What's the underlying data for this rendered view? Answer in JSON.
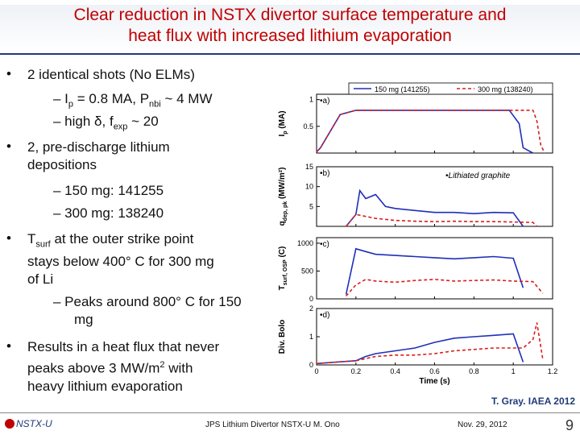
{
  "title": {
    "line1": "Clear reduction in NSTX divertor surface temperature and",
    "line2": "heat flux with increased lithium evaporation"
  },
  "bullets": {
    "b1": "2 identical shots (No ELMs)",
    "b1_s1_pre": "– I",
    "b1_s1_sub": "p",
    "b1_s1_mid": " = 0.8 MA, P",
    "b1_s1_sub2": "nbi",
    "b1_s1_post": " ~ 4 MW",
    "b1_s2_pre": "– high δ, f",
    "b1_s2_sub": "exp",
    "b1_s2_post": " ~ 20",
    "b2_l1": "2, pre-discharge lithium",
    "b2_l2": "depositions",
    "b2_s1": "– 150 mg: 141255",
    "b2_s2": "– 300 mg: 138240",
    "b3_pre": "T",
    "b3_sub": "surf",
    "b3_post": " at the outer strike point",
    "b3_l2": "stays below 400° C for 300 mg",
    "b3_l3": "of Li",
    "b3_s1_l1": "– Peaks around 800° C for 150",
    "b3_s1_l2": "mg",
    "b4_l1": "Results in a heat flux that never",
    "b4_l2_pre": "peaks above 3 MW/m",
    "b4_l2_sup": "2",
    "b4_l2_post": " with",
    "b4_l3": "heavy lithium evaporation"
  },
  "citation": "T. Gray. IAEA 2012",
  "footer": {
    "logo": "NSTX-U",
    "center": "JPS Lithium Divertor NSTX-U M. Ono",
    "date": "Nov. 29, 2012",
    "page": "9"
  },
  "colors": {
    "title": "#c00000",
    "series_150": "#1f2fb8",
    "series_300": "#d81e1e",
    "rule": "#1f3b7a"
  },
  "chart_data": [
    {
      "type": "line",
      "panel": "a)",
      "ylabel_main": "I",
      "ylabel_sub": "p",
      "ylabel_unit": "(MA)",
      "yticks": [
        "0.5",
        "1"
      ],
      "ylim": [
        0,
        1.1
      ],
      "xlim": [
        0,
        1.2
      ],
      "legend": [
        "150 mg (141255)",
        "300 mg (138240)"
      ],
      "series": [
        {
          "name": "150 mg (141255)",
          "x": [
            0.0,
            0.02,
            0.12,
            0.2,
            0.5,
            0.8,
            0.98,
            1.03,
            1.05,
            1.1
          ],
          "y": [
            0.02,
            0.1,
            0.72,
            0.8,
            0.8,
            0.8,
            0.8,
            0.55,
            0.1,
            0.0
          ]
        },
        {
          "name": "300 mg (138240)",
          "x": [
            0.0,
            0.02,
            0.12,
            0.2,
            0.5,
            0.8,
            0.98,
            1.05,
            1.1,
            1.12,
            1.14,
            1.16
          ],
          "y": [
            0.02,
            0.1,
            0.72,
            0.8,
            0.8,
            0.8,
            0.8,
            0.8,
            0.8,
            0.6,
            0.15,
            0.0
          ]
        }
      ]
    },
    {
      "type": "line",
      "panel": "b)",
      "annotation": "Lithiated graphite",
      "ylabel_main": "q",
      "ylabel_sub": "dep, pk",
      "ylabel_unit": "(MW/m²)",
      "yticks": [
        "5",
        "10",
        "15"
      ],
      "ylim": [
        0,
        15
      ],
      "xlim": [
        0,
        1.2
      ],
      "series": [
        {
          "name": "150 mg (141255)",
          "x": [
            0.15,
            0.2,
            0.22,
            0.25,
            0.3,
            0.35,
            0.4,
            0.5,
            0.6,
            0.7,
            0.8,
            0.9,
            1.0,
            1.05
          ],
          "y": [
            0,
            3,
            9,
            7,
            8,
            5,
            4.5,
            4,
            3.5,
            3.5,
            3.2,
            3.5,
            3.4,
            0
          ]
        },
        {
          "name": "300 mg (138240)",
          "x": [
            0.15,
            0.2,
            0.25,
            0.3,
            0.4,
            0.5,
            0.6,
            0.7,
            0.8,
            0.9,
            1.0,
            1.1,
            1.12
          ],
          "y": [
            0,
            3,
            2.5,
            2,
            1.5,
            1.3,
            1.2,
            1.3,
            1.2,
            1.2,
            1.1,
            1.0,
            0
          ]
        }
      ]
    },
    {
      "type": "line",
      "panel": "c)",
      "ylabel_main": "T",
      "ylabel_sub": "surf, OSP",
      "ylabel_unit": "(C)",
      "yticks": [
        "0",
        "500",
        "1000"
      ],
      "ylim": [
        0,
        1100
      ],
      "xlim": [
        0,
        1.2
      ],
      "series": [
        {
          "name": "150 mg (141255)",
          "x": [
            0.15,
            0.2,
            0.25,
            0.3,
            0.4,
            0.5,
            0.6,
            0.7,
            0.8,
            0.9,
            1.0,
            1.05
          ],
          "y": [
            80,
            900,
            850,
            800,
            780,
            760,
            740,
            720,
            740,
            760,
            730,
            200
          ]
        },
        {
          "name": "300 mg (138240)",
          "x": [
            0.15,
            0.2,
            0.25,
            0.3,
            0.4,
            0.5,
            0.6,
            0.7,
            0.8,
            0.9,
            1.0,
            1.1,
            1.15
          ],
          "y": [
            50,
            250,
            350,
            320,
            300,
            330,
            350,
            320,
            330,
            340,
            320,
            310,
            100
          ]
        }
      ]
    },
    {
      "type": "line",
      "panel": "d)",
      "ylabel_main": "Div. Bolo",
      "yticks": [
        "0",
        "1",
        "2"
      ],
      "ylim": [
        0,
        2
      ],
      "xlim": [
        0,
        1.2
      ],
      "xticks": [
        "0",
        "0.2",
        "0.4",
        "0.6",
        "0.8",
        "1",
        "1.2"
      ],
      "xlabel": "Time (s)",
      "series": [
        {
          "name": "150 mg (141255)",
          "x": [
            0.0,
            0.1,
            0.2,
            0.25,
            0.3,
            0.4,
            0.5,
            0.6,
            0.7,
            0.8,
            0.9,
            1.0,
            1.05
          ],
          "y": [
            0.05,
            0.1,
            0.15,
            0.3,
            0.4,
            0.5,
            0.6,
            0.8,
            0.95,
            1.0,
            1.05,
            1.1,
            0.1
          ]
        },
        {
          "name": "300 mg (138240)",
          "x": [
            0.0,
            0.1,
            0.2,
            0.3,
            0.4,
            0.5,
            0.6,
            0.7,
            0.8,
            0.9,
            1.0,
            1.05,
            1.1,
            1.12,
            1.15
          ],
          "y": [
            0.05,
            0.1,
            0.15,
            0.3,
            0.35,
            0.35,
            0.4,
            0.5,
            0.55,
            0.6,
            0.6,
            0.6,
            0.9,
            1.5,
            0.2
          ]
        }
      ]
    }
  ]
}
